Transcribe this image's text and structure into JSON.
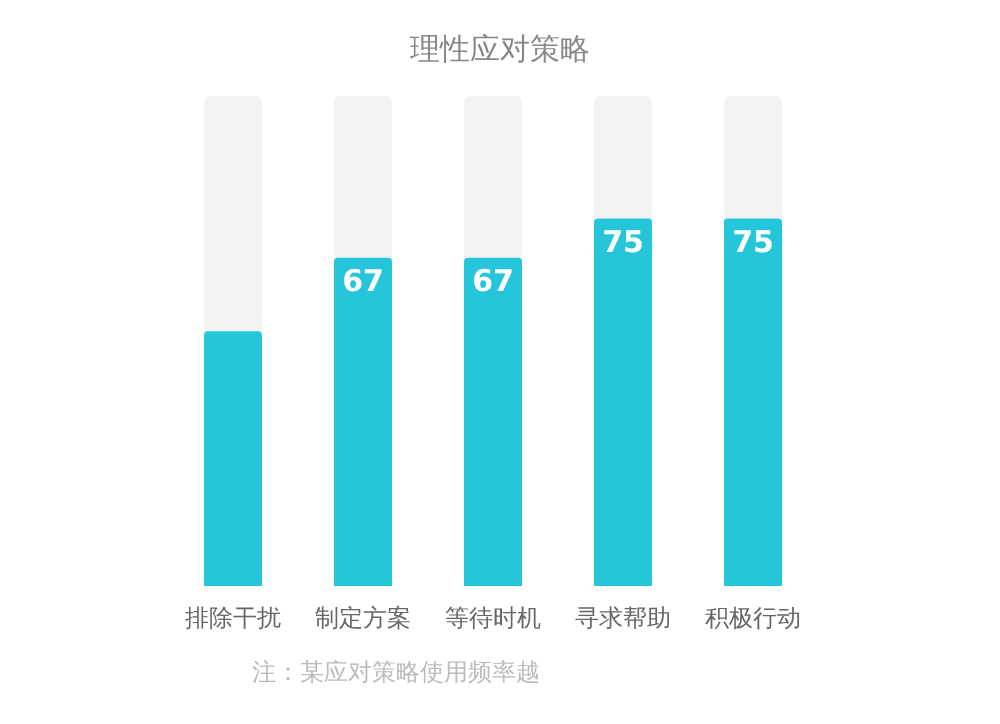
{
  "chart_data": {
    "type": "bar",
    "title": "理性应对策略",
    "categories": [
      "排除干扰",
      "制定方案",
      "等待时机",
      "寻求帮助",
      "积极行动"
    ],
    "values": [
      52,
      67,
      67,
      75,
      75
    ],
    "value_labels": [
      null,
      "67",
      "67",
      "75",
      "75"
    ],
    "color": "#26c6da",
    "ylim": [
      0,
      100
    ],
    "annotations": [
      "注：某应对策略使用频率越"
    ]
  }
}
